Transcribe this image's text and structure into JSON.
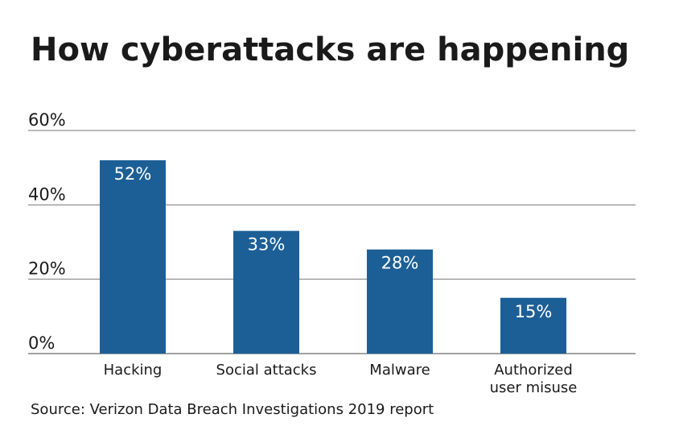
{
  "chart_data": {
    "type": "bar",
    "title": "How cyberattacks are happening",
    "categories": [
      "Hacking",
      "Social attacks",
      "Malware",
      "Authorized user misuse"
    ],
    "values": [
      52,
      33,
      28,
      15
    ],
    "value_labels": [
      "52%",
      "33%",
      "28%",
      "15%"
    ],
    "color": "#1c5f96",
    "ylim": [
      0,
      60
    ],
    "yticks": [
      {
        "value": 0,
        "label": "0%"
      },
      {
        "value": 20,
        "label": "20%"
      },
      {
        "value": 40,
        "label": "40%"
      },
      {
        "value": 60,
        "label": "60%"
      }
    ],
    "grid": true,
    "source": "Source: Verizon Data Breach Investigations 2019 report"
  }
}
